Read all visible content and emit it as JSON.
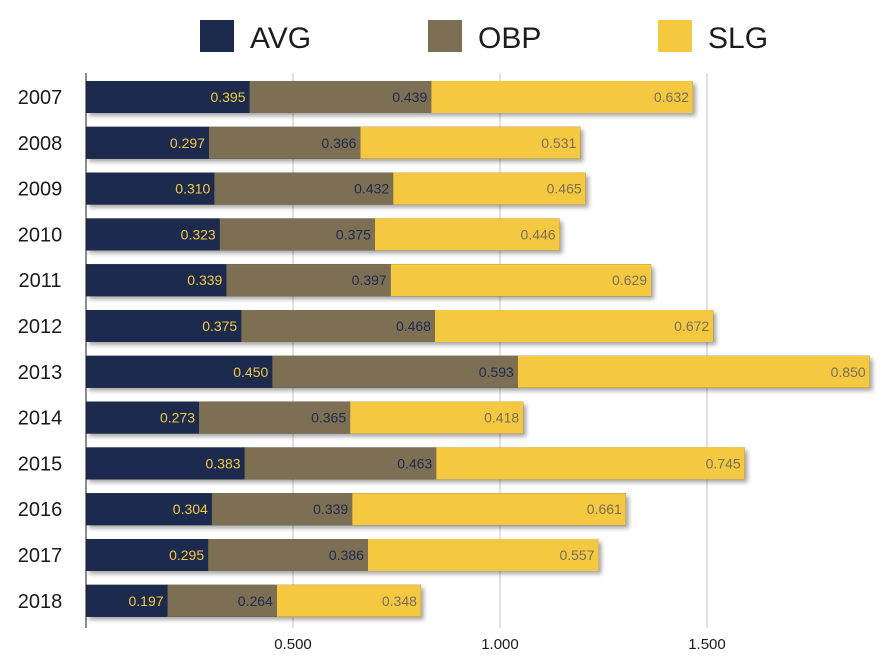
{
  "chart_data": {
    "type": "bar",
    "orientation": "horizontal",
    "stacked": true,
    "categories": [
      "2007",
      "2008",
      "2009",
      "2010",
      "2011",
      "2012",
      "2013",
      "2014",
      "2015",
      "2016",
      "2017",
      "2018"
    ],
    "series": [
      {
        "name": "AVG",
        "color": "#1c2b4d",
        "label_color": "#f5c842",
        "values": [
          0.395,
          0.297,
          0.31,
          0.323,
          0.339,
          0.375,
          0.45,
          0.273,
          0.383,
          0.304,
          0.295,
          0.197
        ],
        "labels": [
          "0.395",
          "0.297",
          "0.310",
          "0.323",
          "0.339",
          "0.375",
          "0.450",
          "0.273",
          "0.383",
          "0.304",
          "0.295",
          "0.197"
        ]
      },
      {
        "name": "OBP",
        "color": "#7d6f53",
        "label_color": "#1c2b4d",
        "values": [
          0.439,
          0.366,
          0.432,
          0.375,
          0.397,
          0.468,
          0.593,
          0.365,
          0.463,
          0.339,
          0.386,
          0.264
        ],
        "labels": [
          "0.439",
          "0.366",
          "0.432",
          "0.375",
          "0.397",
          "0.468",
          "0.593",
          "0.365",
          "0.463",
          "0.339",
          "0.386",
          "0.264"
        ]
      },
      {
        "name": "SLG",
        "color": "#f5c842",
        "label_color": "#7a6f55",
        "values": [
          0.632,
          0.531,
          0.465,
          0.446,
          0.629,
          0.672,
          0.85,
          0.418,
          0.745,
          0.661,
          0.557,
          0.348
        ],
        "labels": [
          "0.632",
          "0.531",
          "0.465",
          "0.446",
          "0.629",
          "0.672",
          "0.850",
          "0.418",
          "0.745",
          "0.661",
          "0.557",
          "0.348"
        ]
      }
    ],
    "x_ticks": [
      0.5,
      1.0,
      1.5
    ],
    "x_tick_labels": [
      "0.500",
      "1.000",
      "1.500"
    ],
    "xlim": [
      0,
      1.93
    ],
    "grid": true,
    "legend_position": "top",
    "title": "",
    "xlabel": "",
    "ylabel": ""
  }
}
